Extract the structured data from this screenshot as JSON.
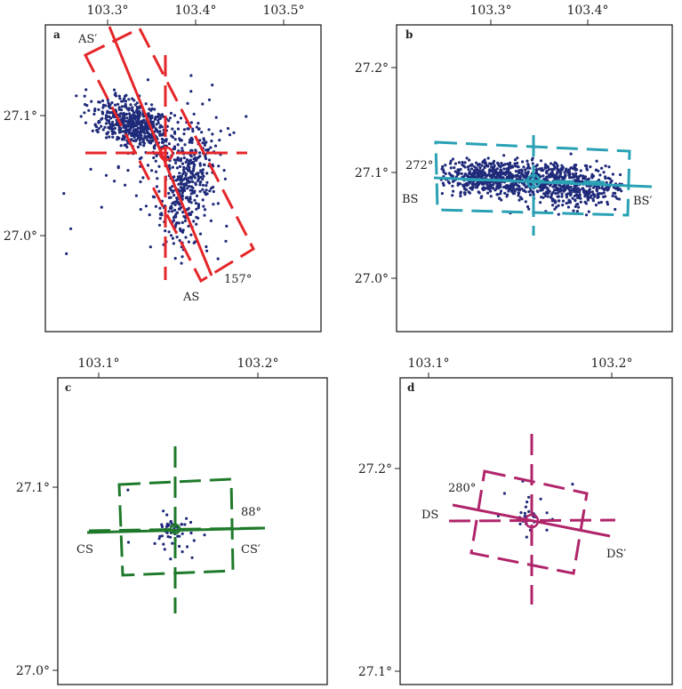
{
  "panels": [
    {
      "letter": "a",
      "color": "#e5262a",
      "dot_color": "#1f2a7a",
      "x_ticks": [
        "103.3°",
        "103.4°",
        "103.5°"
      ],
      "y_ticks": [
        "27.1°",
        "27.0°"
      ],
      "strike_label": "157°",
      "start_label": "AS",
      "end_label": "AS′"
    },
    {
      "letter": "b",
      "color": "#2aa1b5",
      "dot_color": "#1f2a7a",
      "x_ticks": [
        "103.3°",
        "103.4°"
      ],
      "y_ticks": [
        "27.2°",
        "27.1°",
        "27.0°"
      ],
      "strike_label": "272°",
      "start_label": "BS",
      "end_label": "BS′"
    },
    {
      "letter": "c",
      "color": "#1e7a2a",
      "dot_color": "#1f2a7a",
      "x_ticks": [
        "103.1°",
        "103.2°"
      ],
      "y_ticks": [
        "27.1°",
        "27.0°"
      ],
      "strike_label": "88°",
      "start_label": "CS",
      "end_label": "CS′"
    },
    {
      "letter": "d",
      "color": "#b0246a",
      "dot_color": "#1f2a7a",
      "x_ticks": [
        "103.1°",
        "103.2°"
      ],
      "y_ticks": [
        "27.2°",
        "27.1°"
      ],
      "strike_label": "280°",
      "start_label": "DS",
      "end_label": "DS′"
    }
  ]
}
